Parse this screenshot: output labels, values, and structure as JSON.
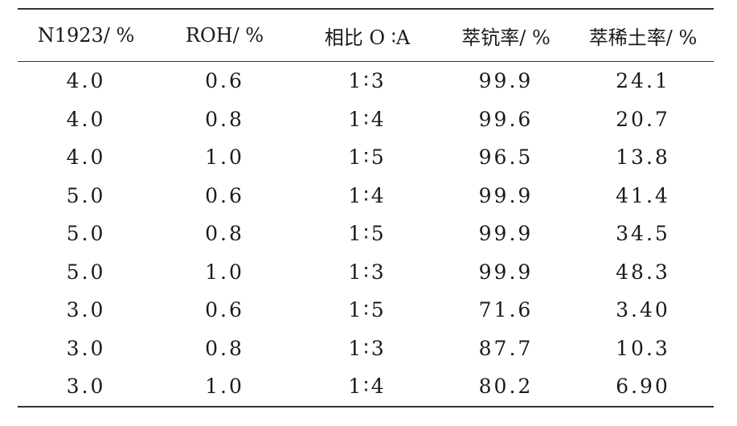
{
  "table": {
    "headers": [
      "N1923/ %",
      "ROH/ %",
      "相比 O ∶A",
      "萃钪率/ %",
      "萃稀土率/ %"
    ],
    "rows": [
      [
        "4.0",
        "0.6",
        "1∶3",
        "99.9",
        "24.1"
      ],
      [
        "4.0",
        "0.8",
        "1∶4",
        "99.6",
        "20.7"
      ],
      [
        "4.0",
        "1.0",
        "1∶5",
        "96.5",
        "13.8"
      ],
      [
        "5.0",
        "0.6",
        "1∶4",
        "99.9",
        "41.4"
      ],
      [
        "5.0",
        "0.8",
        "1∶5",
        "99.9",
        "34.5"
      ],
      [
        "5.0",
        "1.0",
        "1∶3",
        "99.9",
        "48.3"
      ],
      [
        "3.0",
        "0.6",
        "1∶5",
        "71.6",
        "3.40"
      ],
      [
        "3.0",
        "0.8",
        "1∶3",
        "87.7",
        "10.3"
      ],
      [
        "3.0",
        "1.0",
        "1∶4",
        "80.2",
        "6.90"
      ]
    ]
  }
}
